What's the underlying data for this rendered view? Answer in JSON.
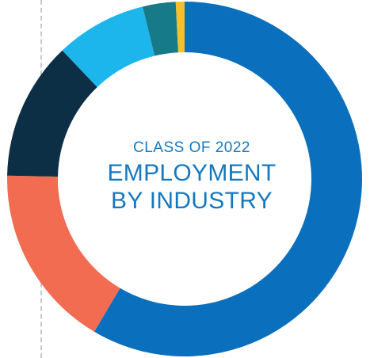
{
  "chart_data": {
    "type": "pie",
    "subtitle": "CLASS OF 2022",
    "title": "EMPLOYMENT\nBY INDUSTRY",
    "title_line1": "EMPLOYMENT",
    "title_line2": "BY INDUSTRY",
    "series": [
      {
        "values": [
          58.5,
          16.8,
          12.6,
          8.3,
          3.0,
          0.8
        ]
      }
    ],
    "colors": [
      "#0a6fbd",
      "#f26c52",
      "#0d2f45",
      "#1cb6ec",
      "#177a89",
      "#f5c02a"
    ],
    "center_text_color": "#1479c0",
    "donut": true,
    "start": "top",
    "direction": "clockwise"
  }
}
